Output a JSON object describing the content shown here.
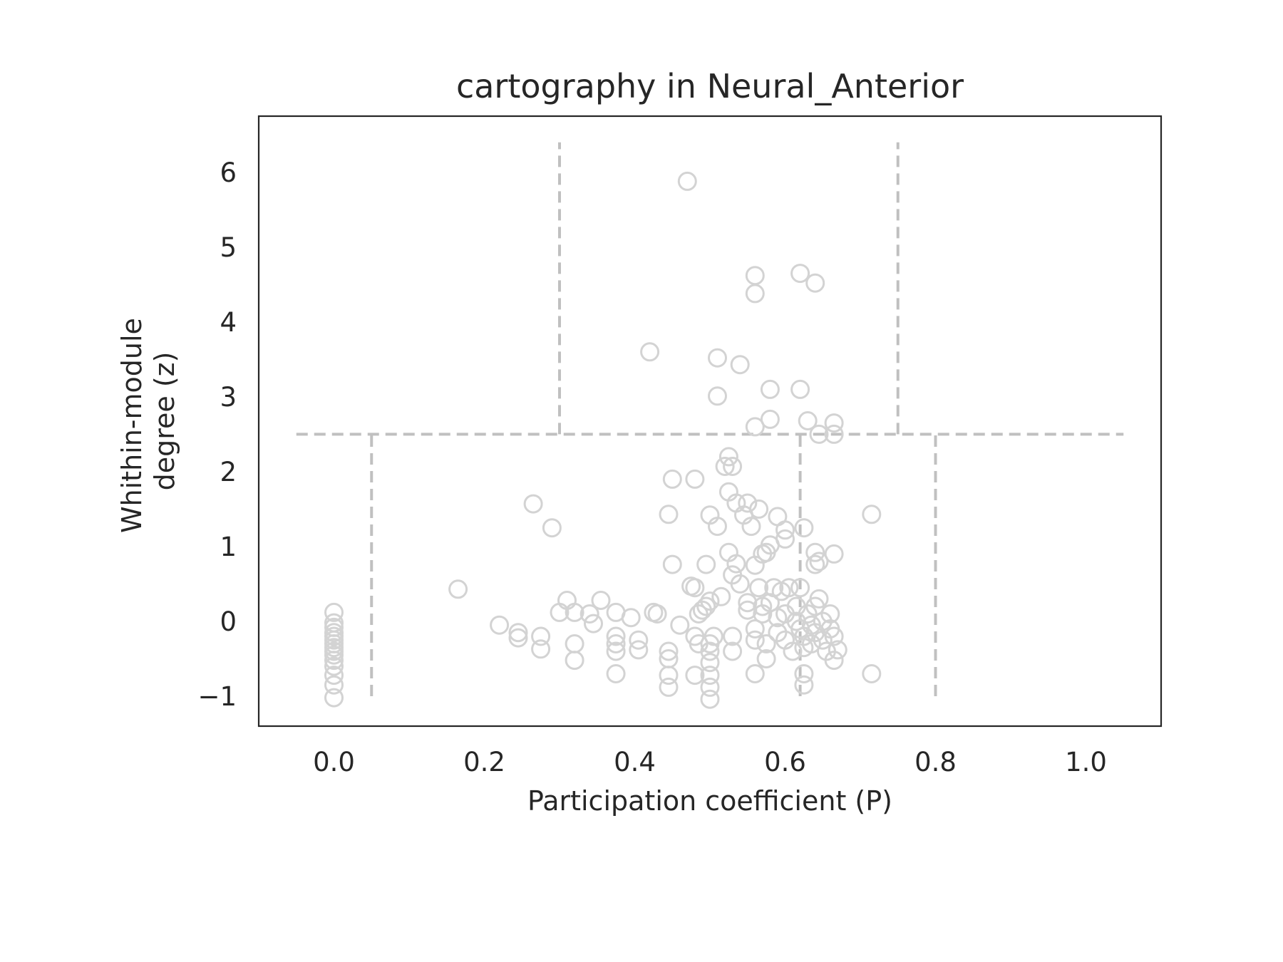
{
  "chart_data": {
    "type": "scatter",
    "title": "cartography in Neural_Anterior",
    "xlabel": "Participation coefficient (P)",
    "ylabel_lines": [
      "Whithin-module",
      "degree (z)"
    ],
    "xlim": [
      -0.1,
      1.1
    ],
    "ylim": [
      -1.4,
      6.75
    ],
    "x_ticks": [
      0.0,
      0.2,
      0.4,
      0.6,
      0.8,
      1.0
    ],
    "x_tick_labels": [
      "0.0",
      "0.2",
      "0.4",
      "0.6",
      "0.8",
      "1.0"
    ],
    "y_ticks": [
      -1,
      0,
      1,
      2,
      3,
      4,
      5,
      6
    ],
    "y_tick_labels": [
      "−1",
      "0",
      "1",
      "2",
      "3",
      "4",
      "5",
      "6"
    ],
    "grid": false,
    "marker_color": "#d3d3d3",
    "guide_line_color": "#c0c0c0",
    "frame_color": "#262626",
    "reference_lines": [
      {
        "orientation": "horizontal",
        "y": 2.5,
        "x_from": -0.05,
        "x_to": 1.05
      },
      {
        "orientation": "vertical",
        "x": 0.05,
        "y_from": -1.0,
        "y_to": 2.5
      },
      {
        "orientation": "vertical",
        "x": 0.62,
        "y_from": -1.0,
        "y_to": 2.5
      },
      {
        "orientation": "vertical",
        "x": 0.8,
        "y_from": -1.0,
        "y_to": 2.5
      },
      {
        "orientation": "vertical",
        "x": 0.3,
        "y_from": 2.5,
        "y_to": 6.4
      },
      {
        "orientation": "vertical",
        "x": 0.75,
        "y_from": 2.5,
        "y_to": 6.4
      }
    ],
    "points": [
      [
        0.0,
        0.12
      ],
      [
        0.0,
        -0.02
      ],
      [
        0.0,
        -0.08
      ],
      [
        0.0,
        -0.15
      ],
      [
        0.0,
        -0.2
      ],
      [
        0.0,
        -0.25
      ],
      [
        0.0,
        -0.3
      ],
      [
        0.0,
        -0.35
      ],
      [
        0.0,
        -0.4
      ],
      [
        0.0,
        -0.45
      ],
      [
        0.0,
        -0.52
      ],
      [
        0.0,
        -0.6
      ],
      [
        0.0,
        -0.72
      ],
      [
        0.0,
        -0.85
      ],
      [
        0.0,
        -1.02
      ],
      [
        0.47,
        5.88
      ],
      [
        0.56,
        4.62
      ],
      [
        0.56,
        4.38
      ],
      [
        0.62,
        4.65
      ],
      [
        0.64,
        4.52
      ],
      [
        0.42,
        3.6
      ],
      [
        0.51,
        3.52
      ],
      [
        0.54,
        3.43
      ],
      [
        0.58,
        3.1
      ],
      [
        0.62,
        3.1
      ],
      [
        0.51,
        3.01
      ],
      [
        0.58,
        2.7
      ],
      [
        0.56,
        2.6
      ],
      [
        0.63,
        2.68
      ],
      [
        0.665,
        2.65
      ],
      [
        0.645,
        2.5
      ],
      [
        0.665,
        2.5
      ],
      [
        0.525,
        2.2
      ],
      [
        0.52,
        2.07
      ],
      [
        0.53,
        2.07
      ],
      [
        0.45,
        1.9
      ],
      [
        0.48,
        1.9
      ],
      [
        0.525,
        1.73
      ],
      [
        0.535,
        1.58
      ],
      [
        0.55,
        1.58
      ],
      [
        0.565,
        1.5
      ],
      [
        0.545,
        1.42
      ],
      [
        0.5,
        1.42
      ],
      [
        0.51,
        1.27
      ],
      [
        0.555,
        1.27
      ],
      [
        0.59,
        1.4
      ],
      [
        0.6,
        1.22
      ],
      [
        0.6,
        1.1
      ],
      [
        0.625,
        1.25
      ],
      [
        0.58,
        1.02
      ],
      [
        0.265,
        1.57
      ],
      [
        0.29,
        1.25
      ],
      [
        0.445,
        1.43
      ],
      [
        0.715,
        1.43
      ],
      [
        0.525,
        0.92
      ],
      [
        0.535,
        0.77
      ],
      [
        0.57,
        0.9
      ],
      [
        0.575,
        0.92
      ],
      [
        0.56,
        0.75
      ],
      [
        0.64,
        0.92
      ],
      [
        0.665,
        0.9
      ],
      [
        0.64,
        0.76
      ],
      [
        0.645,
        0.8
      ],
      [
        0.45,
        0.76
      ],
      [
        0.495,
        0.76
      ],
      [
        0.53,
        0.62
      ],
      [
        0.165,
        0.43
      ],
      [
        0.475,
        0.47
      ],
      [
        0.48,
        0.45
      ],
      [
        0.54,
        0.5
      ],
      [
        0.515,
        0.33
      ],
      [
        0.5,
        0.27
      ],
      [
        0.31,
        0.28
      ],
      [
        0.355,
        0.28
      ],
      [
        0.3,
        0.12
      ],
      [
        0.32,
        0.12
      ],
      [
        0.34,
        0.1
      ],
      [
        0.345,
        -0.03
      ],
      [
        0.375,
        0.12
      ],
      [
        0.395,
        0.05
      ],
      [
        0.43,
        0.1
      ],
      [
        0.425,
        0.12
      ],
      [
        0.22,
        -0.05
      ],
      [
        0.245,
        -0.15
      ],
      [
        0.245,
        -0.22
      ],
      [
        0.275,
        -0.2
      ],
      [
        0.275,
        -0.37
      ],
      [
        0.32,
        -0.3
      ],
      [
        0.32,
        -0.52
      ],
      [
        0.375,
        -0.2
      ],
      [
        0.375,
        -0.3
      ],
      [
        0.375,
        -0.4
      ],
      [
        0.375,
        -0.7
      ],
      [
        0.405,
        -0.25
      ],
      [
        0.405,
        -0.38
      ],
      [
        0.445,
        -0.4
      ],
      [
        0.445,
        -0.5
      ],
      [
        0.445,
        -0.72
      ],
      [
        0.445,
        -0.88
      ],
      [
        0.46,
        -0.05
      ],
      [
        0.48,
        -0.2
      ],
      [
        0.485,
        -0.3
      ],
      [
        0.485,
        0.1
      ],
      [
        0.49,
        0.15
      ],
      [
        0.495,
        0.2
      ],
      [
        0.48,
        -0.72
      ],
      [
        0.5,
        -0.4
      ],
      [
        0.5,
        -0.55
      ],
      [
        0.5,
        -0.72
      ],
      [
        0.5,
        -0.88
      ],
      [
        0.5,
        -1.04
      ],
      [
        0.5,
        -0.3
      ],
      [
        0.505,
        -0.2
      ],
      [
        0.53,
        -0.2
      ],
      [
        0.53,
        -0.4
      ],
      [
        0.55,
        0.15
      ],
      [
        0.55,
        0.25
      ],
      [
        0.56,
        -0.1
      ],
      [
        0.56,
        -0.25
      ],
      [
        0.56,
        -0.7
      ],
      [
        0.565,
        0.45
      ],
      [
        0.57,
        0.1
      ],
      [
        0.57,
        0.2
      ],
      [
        0.575,
        -0.3
      ],
      [
        0.575,
        -0.5
      ],
      [
        0.58,
        0.25
      ],
      [
        0.585,
        0.45
      ],
      [
        0.59,
        -0.15
      ],
      [
        0.59,
        0.05
      ],
      [
        0.595,
        0.4
      ],
      [
        0.6,
        0.1
      ],
      [
        0.6,
        -0.25
      ],
      [
        0.605,
        0.45
      ],
      [
        0.61,
        -0.4
      ],
      [
        0.615,
        0.0
      ],
      [
        0.615,
        0.2
      ],
      [
        0.62,
        0.45
      ],
      [
        0.62,
        -0.1
      ],
      [
        0.625,
        -0.2
      ],
      [
        0.625,
        -0.35
      ],
      [
        0.625,
        -0.7
      ],
      [
        0.625,
        -0.85
      ],
      [
        0.63,
        0.1
      ],
      [
        0.635,
        -0.05
      ],
      [
        0.635,
        -0.3
      ],
      [
        0.64,
        0.2
      ],
      [
        0.64,
        -0.15
      ],
      [
        0.645,
        0.3
      ],
      [
        0.65,
        0.0
      ],
      [
        0.65,
        -0.25
      ],
      [
        0.655,
        -0.4
      ],
      [
        0.66,
        -0.1
      ],
      [
        0.66,
        0.1
      ],
      [
        0.665,
        -0.2
      ],
      [
        0.665,
        -0.52
      ],
      [
        0.67,
        -0.38
      ],
      [
        0.715,
        -0.7
      ]
    ]
  }
}
